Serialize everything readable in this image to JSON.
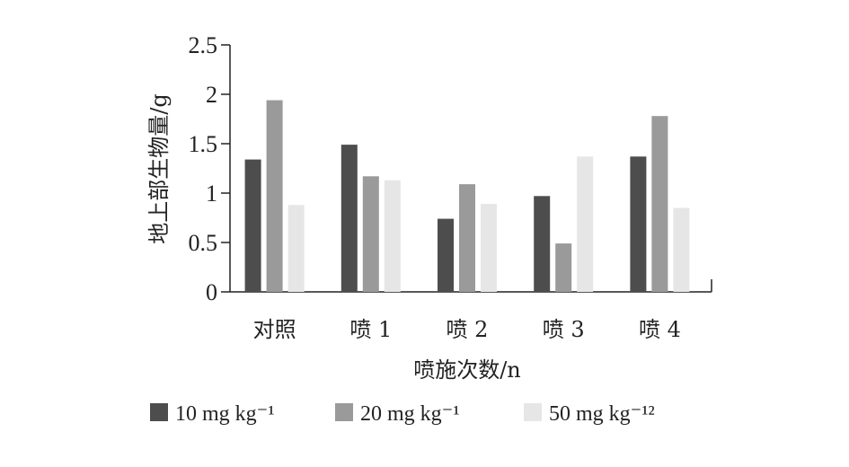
{
  "chart_data": {
    "type": "bar",
    "title": "",
    "xlabel": "喷施次数/n",
    "ylabel": "地上部生物量/g",
    "ylim": [
      0,
      2.5
    ],
    "yticks": [
      "0",
      "0.5",
      "1",
      "1.5",
      "2",
      "2.5"
    ],
    "categories": [
      "对照",
      "喷 1",
      "喷 2",
      "喷 3",
      "喷 4"
    ],
    "series": [
      {
        "name": "10 mg kg⁻¹",
        "values": [
          1.34,
          1.49,
          0.74,
          0.97,
          1.37
        ],
        "color": "#4d4d4d"
      },
      {
        "name": "20 mg kg⁻¹",
        "values": [
          1.94,
          1.17,
          1.09,
          0.49,
          1.78
        ],
        "color": "#9a9a9a"
      },
      {
        "name": "50 mg kg⁻¹²",
        "values": [
          0.88,
          1.13,
          0.89,
          1.37,
          0.85
        ],
        "color": "#e6e6e6"
      }
    ],
    "grid": false,
    "legend_position": "bottom"
  }
}
